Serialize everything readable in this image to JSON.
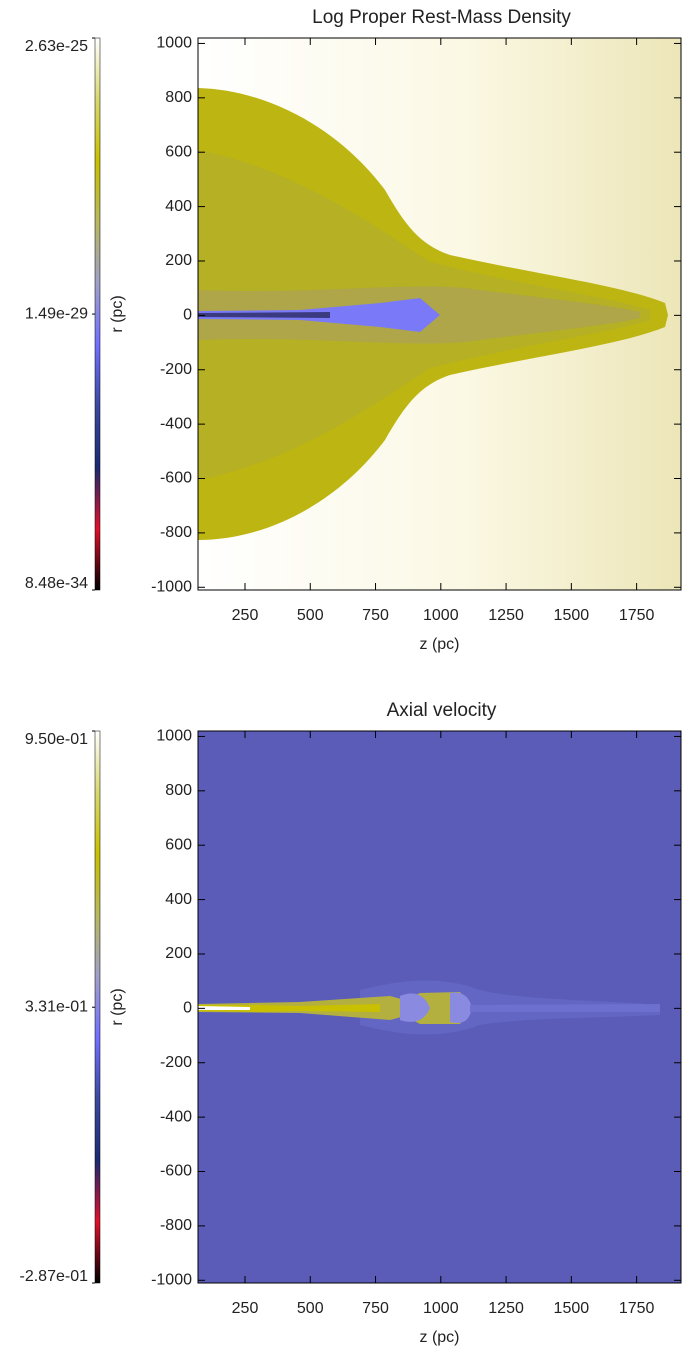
{
  "chart_data": [
    {
      "type": "heatmap",
      "title": "Log Proper Rest-Mass Density",
      "x_label": "z (pc)",
      "y_label": "r (pc)",
      "xlim": [
        70,
        1920
      ],
      "xticks": [
        250,
        500,
        750,
        1000,
        1250,
        1500,
        1750
      ],
      "ylim": [
        -1010,
        1020
      ],
      "yticks": [
        1000,
        800,
        600,
        400,
        200,
        0,
        -200,
        -400,
        -600,
        -800,
        -1000
      ],
      "colorbar": {
        "clim": [
          8.48e-34,
          2.63e-25
        ],
        "ticks": [
          2.63e-25,
          1.49e-29,
          8.48e-34
        ],
        "log": true,
        "colormap": [
          "#000000",
          "#e0102a",
          "#1a2a70",
          "#3a4aa0",
          "#7070ff",
          "#a0a0c8",
          "#b8b860",
          "#c8c000",
          "#d8d870",
          "#ffffff"
        ]
      }
    },
    {
      "type": "heatmap",
      "title": "Axial velocity",
      "x_label": "z (pc)",
      "y_label": "r (pc)",
      "xlim": [
        70,
        1920
      ],
      "xticks": [
        250,
        500,
        750,
        1000,
        1250,
        1500,
        1750
      ],
      "ylim": [
        -1010,
        1020
      ],
      "yticks": [
        1000,
        800,
        600,
        400,
        200,
        0,
        -200,
        -400,
        -600,
        -800,
        -1000
      ],
      "colorbar": {
        "clim": [
          -0.287,
          0.95
        ],
        "ticks": [
          {
            "value": 0.95,
            "label": "9.50e-01"
          },
          {
            "value": 0.331,
            "label": "3.31e-01"
          },
          {
            "value": -0.287,
            "label": "-2.87e-01"
          }
        ],
        "log": false,
        "colormap": [
          "#000000",
          "#e0102a",
          "#1a2a70",
          "#3a4aa0",
          "#7070ff",
          "#a0a0c8",
          "#b8b860",
          "#c8c000",
          "#d8d870",
          "#ffffff"
        ]
      }
    }
  ]
}
